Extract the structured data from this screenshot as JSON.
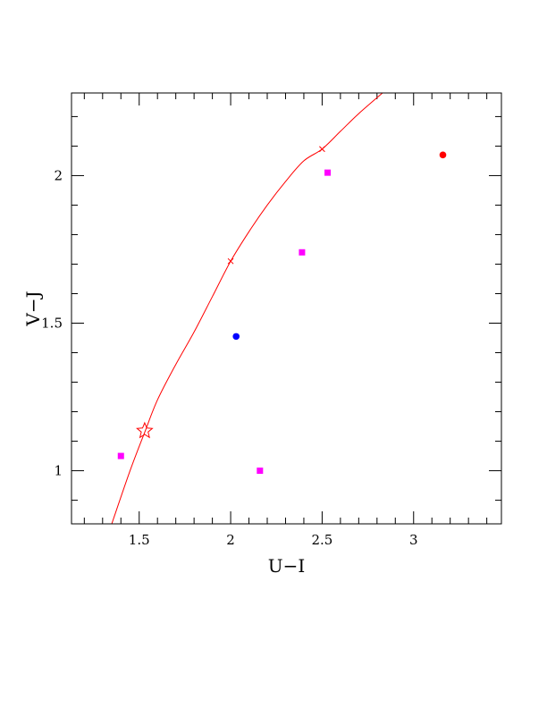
{
  "chart_data": {
    "type": "scatter",
    "xlabel": "U−I",
    "ylabel": "V−J",
    "xlim": [
      1.13,
      3.48
    ],
    "ylim": [
      0.82,
      2.28
    ],
    "xticks": {
      "major": [
        1.5,
        2,
        2.5,
        3
      ],
      "major_labels": [
        "1.5",
        "2",
        "2.5",
        "3"
      ],
      "minor_step": 0.1
    },
    "yticks": {
      "major": [
        1,
        1.5,
        2
      ],
      "major_labels": [
        "1",
        "1.5",
        "2"
      ],
      "minor_step": 0.1
    },
    "grid": false,
    "curve": {
      "color": "#ff0000",
      "points": [
        [
          1.35,
          0.82
        ],
        [
          1.45,
          1.0
        ],
        [
          1.53,
          1.13
        ],
        [
          1.6,
          1.24
        ],
        [
          1.7,
          1.36
        ],
        [
          1.8,
          1.47
        ],
        [
          1.9,
          1.59
        ],
        [
          2.0,
          1.71
        ],
        [
          2.1,
          1.81
        ],
        [
          2.2,
          1.9
        ],
        [
          2.3,
          1.98
        ],
        [
          2.4,
          2.05
        ],
        [
          2.5,
          2.09
        ],
        [
          2.6,
          2.15
        ],
        [
          2.7,
          2.21
        ],
        [
          2.83,
          2.28
        ]
      ],
      "cross_markers": [
        [
          2.0,
          1.71
        ],
        [
          2.5,
          2.09
        ]
      ],
      "star_marker": [
        1.53,
        1.135
      ]
    },
    "points": [
      {
        "x": 1.4,
        "y": 1.05,
        "marker": "square",
        "color": "#ff00ff"
      },
      {
        "x": 2.16,
        "y": 1.0,
        "marker": "square",
        "color": "#ff00ff"
      },
      {
        "x": 2.39,
        "y": 1.74,
        "marker": "square",
        "color": "#ff00ff"
      },
      {
        "x": 2.53,
        "y": 2.01,
        "marker": "square",
        "color": "#ff00ff"
      },
      {
        "x": 2.03,
        "y": 1.455,
        "marker": "circle",
        "color": "#0000ff"
      },
      {
        "x": 3.16,
        "y": 2.07,
        "marker": "circle",
        "color": "#ff0000"
      }
    ]
  }
}
